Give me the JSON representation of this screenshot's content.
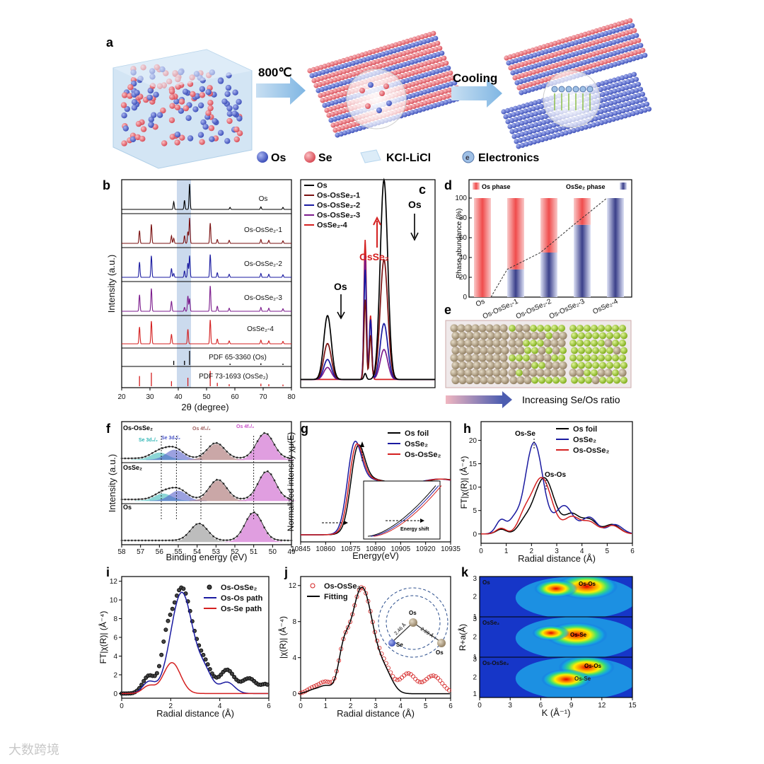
{
  "watermark": "大数跨境",
  "panel_a": {
    "letter": "a",
    "step1": "800℃",
    "step2": "Cooling",
    "legend": [
      "Os",
      "Se",
      "KCl-LiCl",
      "Electronics"
    ],
    "electron_symbol": "e",
    "colors": {
      "os": "#5a6fd6",
      "se": "#e8727c",
      "salt": "#cfe6f6"
    }
  },
  "panel_b": {
    "letter": "b",
    "ylabel": "Intensity (a.u.)",
    "xlabel": "2θ (degree)",
    "chart_data": {
      "type": "line",
      "x_ticks": [
        20,
        30,
        40,
        50,
        60,
        70,
        80
      ],
      "xlim": [
        20,
        80
      ],
      "highlight_range": [
        40,
        45
      ],
      "series": [
        {
          "name": "Os",
          "color": "#000000",
          "peaks": [
            [
              38.4,
              0.3
            ],
            [
              42.2,
              0.35
            ],
            [
              44.0,
              1.0
            ],
            [
              58.3,
              0.08
            ],
            [
              69.2,
              0.1
            ],
            [
              77.0,
              0.08
            ]
          ]
        },
        {
          "name": "Os-OsSe2-1",
          "color": "#7a1010",
          "peaks": [
            [
              26.3,
              0.5
            ],
            [
              30.5,
              0.75
            ],
            [
              37.6,
              0.3
            ],
            [
              38.4,
              0.2
            ],
            [
              42.2,
              0.3
            ],
            [
              43.4,
              0.45
            ],
            [
              44.0,
              1.0
            ],
            [
              51.3,
              0.8
            ],
            [
              53.8,
              0.15
            ],
            [
              58.0,
              0.12
            ],
            [
              69.2,
              0.15
            ],
            [
              72.0,
              0.12
            ],
            [
              77.0,
              0.1
            ]
          ]
        },
        {
          "name": "Os-OsSe2-2",
          "color": "#1a1aa0",
          "peaks": [
            [
              26.3,
              0.6
            ],
            [
              30.5,
              0.85
            ],
            [
              37.6,
              0.35
            ],
            [
              38.4,
              0.15
            ],
            [
              42.2,
              0.25
            ],
            [
              43.4,
              0.55
            ],
            [
              44.0,
              0.85
            ],
            [
              51.3,
              0.9
            ],
            [
              53.8,
              0.18
            ],
            [
              58.0,
              0.12
            ],
            [
              69.2,
              0.15
            ],
            [
              72.0,
              0.12
            ],
            [
              77.0,
              0.1
            ]
          ]
        },
        {
          "name": "Os-OsSe2-3",
          "color": "#7b1b8c",
          "peaks": [
            [
              26.3,
              0.65
            ],
            [
              30.5,
              0.9
            ],
            [
              37.6,
              0.4
            ],
            [
              42.2,
              0.15
            ],
            [
              43.4,
              0.6
            ],
            [
              44.0,
              0.5
            ],
            [
              51.3,
              1.0
            ],
            [
              53.8,
              0.2
            ],
            [
              58.0,
              0.12
            ],
            [
              69.2,
              0.15
            ],
            [
              72.0,
              0.12
            ],
            [
              77.0,
              0.1
            ]
          ]
        },
        {
          "name": "OsSe2-4",
          "color": "#d42020",
          "peaks": [
            [
              26.3,
              0.7
            ],
            [
              30.5,
              0.95
            ],
            [
              37.6,
              0.4
            ],
            [
              43.4,
              0.6
            ],
            [
              51.3,
              1.0
            ],
            [
              53.8,
              0.2
            ],
            [
              58.0,
              0.12
            ],
            [
              69.2,
              0.15
            ],
            [
              72.0,
              0.12
            ],
            [
              77.0,
              0.1
            ]
          ]
        }
      ],
      "references": [
        {
          "name": "PDF 65-3360 (Os)",
          "color": "#000000",
          "sticks": [
            [
              38.4,
              0.3
            ],
            [
              42.2,
              0.3
            ],
            [
              44.0,
              1.0
            ],
            [
              58.3,
              0.1
            ],
            [
              69.2,
              0.12
            ],
            [
              77.0,
              0.1
            ]
          ]
        },
        {
          "name": "PDF 73-1693 (OsSe2)",
          "color": "#d42020",
          "sticks": [
            [
              26.3,
              0.6
            ],
            [
              30.5,
              0.8
            ],
            [
              37.6,
              0.3
            ],
            [
              43.4,
              0.5
            ],
            [
              51.3,
              0.9
            ],
            [
              53.8,
              0.2
            ],
            [
              58.0,
              0.12
            ],
            [
              69.2,
              0.15
            ],
            [
              72.0,
              0.12
            ],
            [
              77.0,
              0.1
            ]
          ]
        }
      ],
      "labels": [
        "Os",
        "Os-OsSe₂-1",
        "Os-OsSe₂-2",
        "Os-OsSe₂-3",
        "OsSe₂-4",
        "PDF 65-3360 (Os)",
        "PDF 73-1693 (OsSe₂)"
      ]
    }
  },
  "panel_c": {
    "letter": "c",
    "legend": [
      "Os",
      "Os-OsSe₂-1",
      "Os-OsSe₂-2",
      "Os-OsSe₂-3",
      "OsSe₂-4"
    ],
    "annotations": [
      "Os",
      "OsSe₂",
      "Os"
    ],
    "chart_data": {
      "type": "line",
      "series": [
        {
          "name": "Os",
          "color": "#000000",
          "peaks": [
            [
              0.2,
              0.32
            ],
            [
              0.48,
              0.03
            ],
            [
              0.62,
              1.0
            ]
          ]
        },
        {
          "name": "Os-OsSe2-1",
          "color": "#7a1010",
          "peaks": [
            [
              0.2,
              0.18
            ],
            [
              0.48,
              0.4
            ],
            [
              0.52,
              0.22
            ],
            [
              0.62,
              0.6
            ]
          ]
        },
        {
          "name": "Os-OsSe2-2",
          "color": "#1a1aa0",
          "peaks": [
            [
              0.2,
              0.1
            ],
            [
              0.48,
              0.55
            ],
            [
              0.52,
              0.3
            ],
            [
              0.62,
              0.28
            ]
          ]
        },
        {
          "name": "Os-OsSe2-3",
          "color": "#7b1b8c",
          "peaks": [
            [
              0.2,
              0.06
            ],
            [
              0.48,
              0.62
            ],
            [
              0.52,
              0.3
            ],
            [
              0.62,
              0.15
            ]
          ]
        },
        {
          "name": "OsSe2-4",
          "color": "#d42020",
          "peaks": [
            [
              0.48,
              0.7
            ],
            [
              0.52,
              0.32
            ]
          ]
        }
      ]
    }
  },
  "panel_d": {
    "letter": "d",
    "ylabel": "Phase abundance (%)",
    "legend": [
      "Os phase",
      "OsSe₂ phase"
    ],
    "chart_data": {
      "type": "bar",
      "categories": [
        "Os",
        "Os-OsSe₂-1",
        "Os-OsSe₂-2",
        "Os-OsSe₂-3",
        "OsSe₂-4"
      ],
      "series": [
        {
          "name": "OsSe2 phase",
          "values": [
            0,
            28,
            45,
            73,
            100
          ],
          "color": "#3b3f7a"
        },
        {
          "name": "Os phase",
          "values": [
            100,
            72,
            55,
            27,
            0
          ],
          "color": "#f06d6d"
        }
      ],
      "y_ticks": [
        0,
        20,
        40,
        60,
        80,
        100
      ],
      "ylim": [
        0,
        100
      ]
    }
  },
  "panel_e": {
    "letter": "e",
    "caption": "Increasing Se/Os ratio",
    "colors": {
      "os": "#b5a286",
      "se": "#a6d12f"
    },
    "se_fraction": [
      0,
      0.45,
      0.85
    ]
  },
  "panel_f": {
    "letter": "f",
    "xlabel": "Binding energy (eV)",
    "ylabel": "Intensity (a.u.)",
    "x_ticks": [
      58,
      57,
      56,
      55,
      54,
      53,
      52,
      51,
      50,
      49
    ],
    "rows": [
      "Os-OsSe₂",
      "OsSe₂",
      "Os"
    ],
    "peak_labels": [
      "Se 3d₃/₂",
      "Se 3d₅/₂",
      "Os 4f₅/₂",
      "Os 4f₇/₂"
    ],
    "chart_data": {
      "type": "line",
      "xlim": [
        58,
        49
      ],
      "rows": [
        {
          "name": "Os-OsSe2",
          "peaks": [
            [
              56.0,
              0.25,
              "#2fb5b5"
            ],
            [
              55.2,
              0.35,
              "#4a56c8"
            ],
            [
              53.0,
              0.55,
              "#a06060"
            ],
            [
              50.4,
              0.9,
              "#c84fc8"
            ]
          ]
        },
        {
          "name": "OsSe2",
          "peaks": [
            [
              55.8,
              0.25,
              "#2fb5b5"
            ],
            [
              55.0,
              0.35,
              "#4a56c8"
            ],
            [
              52.9,
              0.7,
              "#a06060"
            ],
            [
              50.3,
              1.0,
              "#c84fc8"
            ]
          ]
        },
        {
          "name": "Os",
          "peaks": [
            [
              53.9,
              0.6,
              "#888888"
            ],
            [
              51.0,
              1.0,
              "#c84fc8"
            ]
          ]
        }
      ]
    }
  },
  "panel_g": {
    "letter": "g",
    "xlabel": "Energy(eV)",
    "ylabel": "Normalized intensity χμ(E)",
    "legend": [
      "Os foil",
      "OsSe₂",
      "Os-OsSe₂"
    ],
    "inset_label": "Energy shift",
    "chart_data": {
      "type": "line",
      "x_ticks": [
        10845,
        10860,
        10875,
        10890,
        10905,
        10920,
        10935
      ],
      "xlim": [
        10845,
        10935
      ],
      "ylim": [
        0,
        2.0
      ],
      "series": [
        {
          "name": "Os foil",
          "color": "#000000",
          "edge": 10875,
          "peak": 1.78
        },
        {
          "name": "OsSe2",
          "color": "#1a1aa0",
          "edge": 10873,
          "peak": 1.85
        },
        {
          "name": "Os-OsSe2",
          "color": "#d42020",
          "edge": 10874,
          "peak": 1.8
        }
      ]
    }
  },
  "panel_h": {
    "letter": "h",
    "xlabel": "Radial distance (Å)",
    "ylabel": "FT|χ(R)| (Å⁻⁴)",
    "legend": [
      "Os foil",
      "OsSe₂",
      "Os-OsSe₂"
    ],
    "annotations": [
      "Os-Se",
      "Os-Os"
    ],
    "chart_data": {
      "type": "line",
      "x_ticks": [
        0,
        1,
        2,
        3,
        4,
        5,
        6
      ],
      "y_ticks": [
        0,
        5,
        10,
        15,
        20
      ],
      "xlim": [
        0,
        6
      ],
      "ylim": [
        -2,
        24
      ],
      "series": [
        {
          "name": "Os foil",
          "color": "#000000",
          "peaks": [
            [
              0.8,
              1.0,
              0.2
            ],
            [
              1.7,
              2.0,
              0.25
            ],
            [
              2.5,
              12.0,
              0.4
            ],
            [
              3.6,
              4.0,
              0.3
            ],
            [
              4.3,
              3.0,
              0.3
            ],
            [
              5.2,
              2.0,
              0.3
            ]
          ]
        },
        {
          "name": "OsSe2",
          "color": "#1a1aa0",
          "peaks": [
            [
              0.8,
              3.0,
              0.2
            ],
            [
              1.3,
              2.5,
              0.2
            ],
            [
              2.1,
              19.5,
              0.35
            ],
            [
              3.3,
              6.0,
              0.35
            ],
            [
              4.3,
              3.5,
              0.3
            ],
            [
              5.3,
              2.0,
              0.3
            ]
          ]
        },
        {
          "name": "Os-OsSe2",
          "color": "#d42020",
          "peaks": [
            [
              0.8,
              1.2,
              0.2
            ],
            [
              1.7,
              3.0,
              0.25
            ],
            [
              2.4,
              12.0,
              0.4
            ],
            [
              3.6,
              3.5,
              0.3
            ],
            [
              4.3,
              2.5,
              0.3
            ],
            [
              5.2,
              1.8,
              0.3
            ]
          ]
        }
      ]
    }
  },
  "panel_i": {
    "letter": "i",
    "xlabel": "Radial distance (Å)",
    "ylabel": "FT|χ(R)| (Å⁻⁴)",
    "legend": [
      "Os-OsSe₂",
      "Os-Os path",
      "Os-Se path"
    ],
    "chart_data": {
      "type": "line",
      "x_ticks": [
        0,
        2,
        4,
        6
      ],
      "y_ticks": [
        0,
        2,
        4,
        6,
        8,
        10,
        12
      ],
      "xlim": [
        0,
        6
      ],
      "ylim": [
        -0.5,
        12.5
      ],
      "series": [
        {
          "name": "Os-OsSe2",
          "color": "#000000",
          "peaks": [
            [
              1.1,
              1.8,
              0.25
            ],
            [
              1.8,
              2.8,
              0.2
            ],
            [
              2.45,
              11.3,
              0.45
            ],
            [
              3.4,
              2.5,
              0.3
            ],
            [
              4.3,
              2.5,
              0.3
            ],
            [
              5.2,
              1.6,
              0.3
            ],
            [
              5.9,
              0.9,
              0.2
            ]
          ]
        },
        {
          "name": "Os-Os path",
          "color": "#1a1aa0",
          "peaks": [
            [
              1.1,
              1.2,
              0.25
            ],
            [
              2.45,
              10.8,
              0.45
            ],
            [
              3.4,
              2.0,
              0.3
            ],
            [
              4.3,
              1.2,
              0.3
            ]
          ]
        },
        {
          "name": "Os-Se path",
          "color": "#d42020",
          "peaks": [
            [
              1.1,
              0.8,
              0.25
            ],
            [
              2.05,
              3.3,
              0.35
            ]
          ]
        }
      ]
    }
  },
  "panel_j": {
    "letter": "j",
    "xlabel": "Radial distance (Å)",
    "ylabel": "|χ(R)| (Å⁻⁴)",
    "legend": [
      "Os-OsSe₂",
      "Fitting"
    ],
    "inset": {
      "atoms": [
        "Os",
        "Se",
        "Os"
      ],
      "bonds": [
        "2.46 Å",
        "2.69 Å"
      ]
    },
    "chart_data": {
      "type": "line",
      "x_ticks": [
        0,
        1,
        2,
        3,
        4,
        5,
        6
      ],
      "y_ticks": [
        0,
        4,
        8,
        12
      ],
      "xlim": [
        0,
        6
      ],
      "ylim": [
        -0.5,
        13
      ],
      "series": [
        {
          "name": "Os-OsSe2",
          "color": "#d42020",
          "peaks": [
            [
              0.5,
              0.6,
              0.25
            ],
            [
              1.0,
              1.2,
              0.25
            ],
            [
              1.7,
              3.0,
              0.2
            ],
            [
              2.45,
              11.8,
              0.45
            ],
            [
              3.4,
              2.2,
              0.3
            ],
            [
              4.3,
              2.2,
              0.3
            ],
            [
              5.3,
              2.0,
              0.35
            ]
          ]
        },
        {
          "name": "Fitting",
          "color": "#000000",
          "peaks": [
            [
              0.5,
              0.4,
              0.25
            ],
            [
              1.0,
              0.8,
              0.25
            ],
            [
              1.7,
              3.0,
              0.2
            ],
            [
              2.45,
              11.8,
              0.45
            ],
            [
              3.4,
              1.8,
              0.3
            ]
          ]
        }
      ]
    }
  },
  "panel_k": {
    "letter": "k",
    "xlabel": "K (Å⁻¹)",
    "ylabel": "R+a(Å)",
    "rows": [
      "Os",
      "OsSe₂",
      "Os-OsSe₂"
    ],
    "row_labels": [
      [
        "Os-Os"
      ],
      [
        "Os-Se"
      ],
      [
        "Os-Os",
        "Os-Se"
      ]
    ],
    "chart_data": {
      "type": "heatmap",
      "x_ticks": [
        0,
        3,
        6,
        9,
        12,
        15
      ],
      "y_ticks_per_row": [
        1,
        2,
        3
      ],
      "xlim": [
        0,
        15
      ],
      "hotspots": [
        [
          [
            10.5,
            2.5,
            1.0
          ],
          [
            7.5,
            2.4,
            0.7
          ]
        ],
        [
          [
            9.5,
            2.1,
            1.0
          ],
          [
            7.0,
            2.2,
            0.6
          ]
        ],
        [
          [
            10.5,
            2.5,
            0.9
          ],
          [
            8.5,
            1.9,
            0.8
          ]
        ]
      ]
    }
  }
}
